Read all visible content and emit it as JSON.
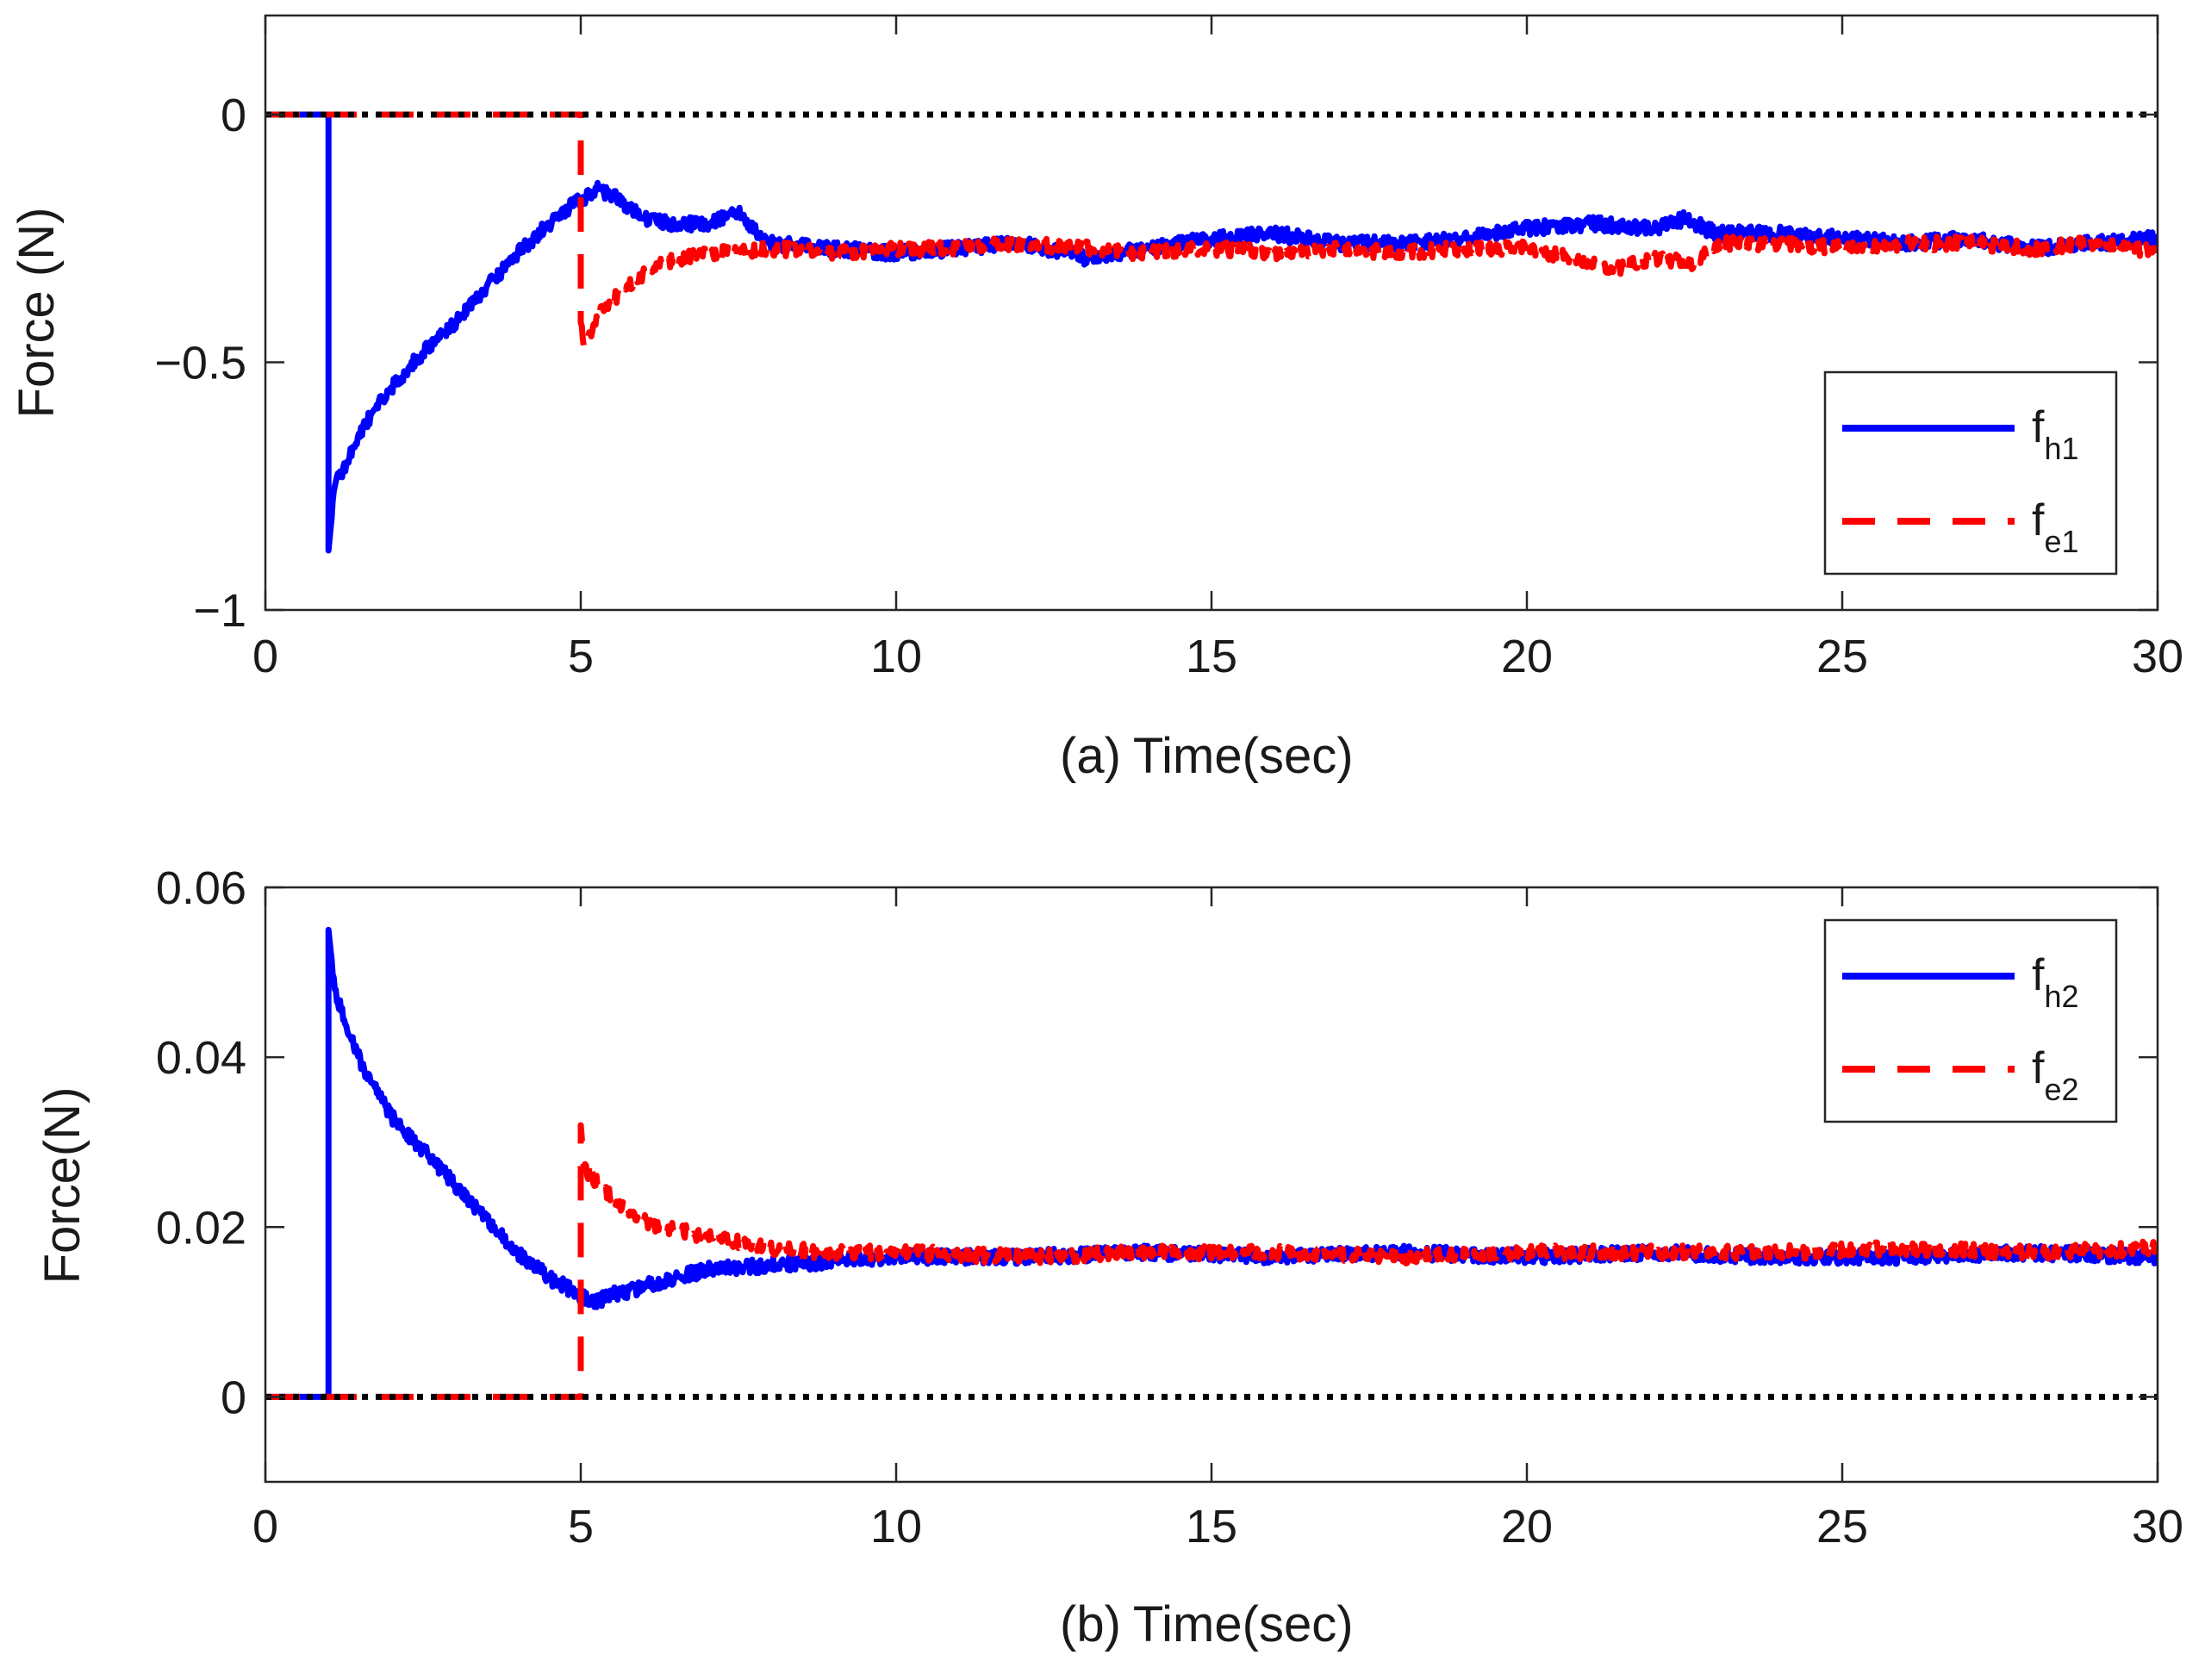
{
  "chart_data": [
    {
      "type": "line",
      "panel_label": "(a)",
      "xlabel": "Time(sec)",
      "ylabel": "Force (N)",
      "xlim": [
        0,
        30
      ],
      "ylim": [
        -1,
        0.2
      ],
      "xticks": [
        0,
        5,
        10,
        15,
        20,
        25,
        30
      ],
      "xtick_labels": [
        "0",
        "5",
        "10",
        "15",
        "20",
        "25",
        "30"
      ],
      "yticks": [
        0,
        -0.5,
        -1
      ],
      "ytick_labels": [
        "0",
        "−0.5",
        "−1"
      ],
      "legend_position": "right-middle",
      "series": [
        {
          "name": "f_h1",
          "legend_main": "f",
          "legend_sub": "h1",
          "color": "#0000ff",
          "style": "solid",
          "x": [
            0,
            1,
            1,
            1.1,
            1.3,
            1.6,
            2,
            2.5,
            3,
            3.5,
            4,
            4.5,
            5,
            5.3,
            5.6,
            6,
            6.5,
            7,
            7.5,
            8,
            9,
            10,
            11,
            12,
            13,
            14,
            15,
            16,
            17,
            18,
            19,
            20,
            21,
            22,
            22.5,
            23,
            24,
            25,
            26,
            27,
            28,
            29,
            30
          ],
          "values": [
            0,
            0,
            -0.88,
            -0.75,
            -0.7,
            -0.62,
            -0.55,
            -0.48,
            -0.42,
            -0.35,
            -0.28,
            -0.22,
            -0.17,
            -0.15,
            -0.17,
            -0.21,
            -0.22,
            -0.22,
            -0.2,
            -0.26,
            -0.27,
            -0.28,
            -0.27,
            -0.26,
            -0.29,
            -0.27,
            -0.25,
            -0.24,
            -0.26,
            -0.26,
            -0.25,
            -0.23,
            -0.22,
            -0.23,
            -0.21,
            -0.24,
            -0.24,
            -0.25,
            -0.26,
            -0.25,
            -0.27,
            -0.26,
            -0.25
          ]
        },
        {
          "name": "f_e1",
          "legend_main": "f",
          "legend_sub": "e1",
          "color": "#ff0000",
          "style": "dashed",
          "x": [
            0,
            5,
            5,
            5,
            5.05,
            5.3,
            5.7,
            6.2,
            7,
            8,
            9,
            10,
            11,
            12,
            13,
            14,
            15,
            16,
            17,
            18,
            19,
            20,
            21,
            21.5,
            22,
            22.7,
            23,
            24,
            25,
            26,
            27,
            28,
            29,
            30
          ],
          "values": [
            0,
            0,
            -0.07,
            -0.42,
            -0.47,
            -0.4,
            -0.35,
            -0.3,
            -0.28,
            -0.27,
            -0.28,
            -0.27,
            -0.27,
            -0.26,
            -0.27,
            -0.28,
            -0.27,
            -0.28,
            -0.27,
            -0.28,
            -0.27,
            -0.27,
            -0.3,
            -0.31,
            -0.29,
            -0.3,
            -0.26,
            -0.26,
            -0.27,
            -0.26,
            -0.26,
            -0.27,
            -0.26,
            -0.28
          ]
        },
        {
          "name": "zero reference",
          "color": "#000000",
          "style": "dotted",
          "x": [
            0,
            30
          ],
          "values": [
            0,
            0
          ]
        }
      ]
    },
    {
      "type": "line",
      "panel_label": "(b)",
      "xlabel": "Time(sec)",
      "ylabel": "Force(N)",
      "xlim": [
        0,
        30
      ],
      "ylim": [
        -0.01,
        0.06
      ],
      "xticks": [
        0,
        5,
        10,
        15,
        20,
        25,
        30
      ],
      "xtick_labels": [
        "0",
        "5",
        "10",
        "15",
        "20",
        "25",
        "30"
      ],
      "yticks": [
        0,
        0.02,
        0.04,
        0.06
      ],
      "ytick_labels": [
        "0",
        "0.02",
        "0.04",
        "0.06"
      ],
      "legend_position": "top-right",
      "series": [
        {
          "name": "f_h2",
          "legend_main": "f",
          "legend_sub": "h2",
          "color": "#0000ff",
          "style": "solid",
          "x": [
            0,
            1,
            1,
            1.1,
            1.3,
            1.6,
            2,
            2.5,
            3,
            3.5,
            4,
            4.5,
            5,
            5.2,
            5.5,
            6,
            6.5,
            7,
            8,
            9,
            10,
            12,
            14,
            16,
            18,
            20,
            22,
            24,
            26,
            28,
            30
          ],
          "values": [
            0,
            0,
            0.055,
            0.048,
            0.043,
            0.038,
            0.033,
            0.029,
            0.025,
            0.021,
            0.017,
            0.014,
            0.012,
            0.011,
            0.012,
            0.013,
            0.014,
            0.015,
            0.0155,
            0.016,
            0.0165,
            0.0165,
            0.017,
            0.0165,
            0.017,
            0.0165,
            0.017,
            0.0165,
            0.0165,
            0.017,
            0.0165
          ]
        },
        {
          "name": "f_e2",
          "legend_main": "f",
          "legend_sub": "e2",
          "color": "#ff0000",
          "style": "dashed",
          "x": [
            0,
            5,
            5,
            5,
            5.05,
            5.3,
            5.7,
            6.2,
            7,
            8,
            9,
            10,
            12,
            14,
            16,
            18,
            20,
            22,
            24,
            26,
            28,
            30
          ],
          "values": [
            0,
            0,
            0.004,
            0.032,
            0.027,
            0.025,
            0.022,
            0.02,
            0.019,
            0.0175,
            0.017,
            0.017,
            0.0165,
            0.017,
            0.017,
            0.0165,
            0.017,
            0.017,
            0.017,
            0.0175,
            0.017,
            0.0175
          ]
        },
        {
          "name": "zero reference",
          "color": "#000000",
          "style": "dotted",
          "x": [
            0,
            30
          ],
          "values": [
            0,
            0
          ]
        }
      ]
    }
  ]
}
